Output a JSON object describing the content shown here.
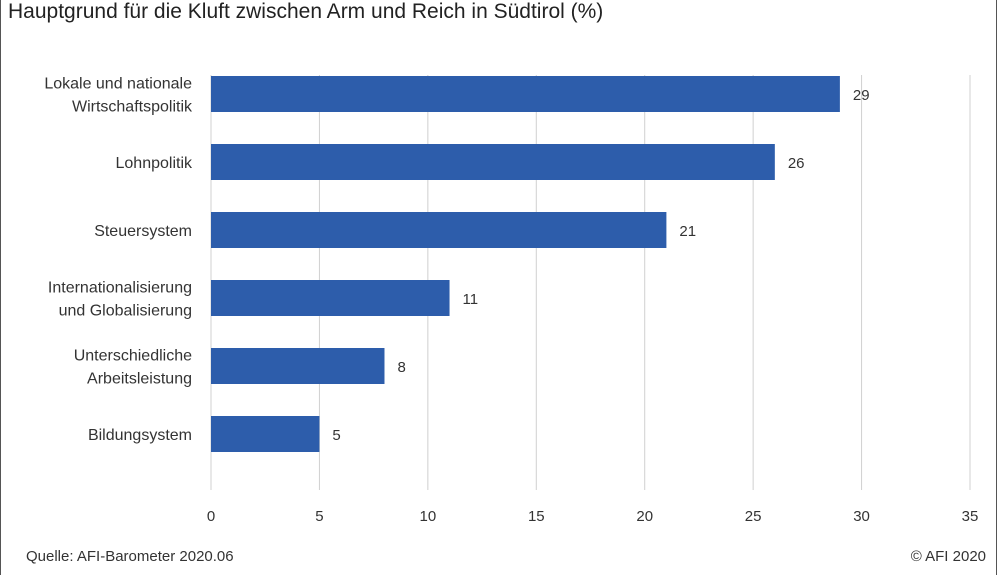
{
  "title": "Hauptgrund für die Kluft zwischen Arm und Reich in Südtirol (%)",
  "source": "Quelle: AFI-Barometer 2020.06",
  "copyright": "© AFI 2020",
  "colors": {
    "bar": "#2d5dab",
    "grid": "#d0d0d0",
    "text": "#333333"
  },
  "chart_data": {
    "type": "bar",
    "orientation": "horizontal",
    "categories": [
      [
        "Lokale und nationale",
        "Wirtschaftspolitik"
      ],
      [
        "Lohnpolitik"
      ],
      [
        "Steuersystem"
      ],
      [
        "Internationalisierung",
        "und Globalisierung"
      ],
      [
        "Unterschiedliche",
        "Arbeitsleistung"
      ],
      [
        "Bildungsystem"
      ]
    ],
    "values": [
      29,
      26,
      21,
      11,
      8,
      5
    ],
    "value_labels": [
      "29",
      "26",
      "21",
      "11",
      "8",
      "5"
    ],
    "xlim": [
      0,
      35
    ],
    "xticks": [
      0,
      5,
      10,
      15,
      20,
      25,
      30,
      35
    ],
    "grid": "vertical",
    "title": "Hauptgrund für die Kluft zwischen Arm und Reich in Südtirol (%)"
  }
}
